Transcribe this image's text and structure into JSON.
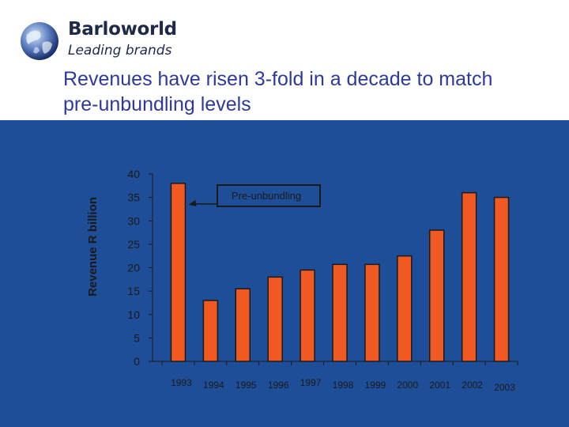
{
  "header": {
    "brand_name": "Barloworld",
    "brand_tagline": "Leading brands",
    "title_line1": "Revenues have risen 3-fold in a decade to match",
    "title_line2": "pre-unbundling levels"
  },
  "colors": {
    "panel": "#1f4e99",
    "bar": "#f05a22",
    "bar_stroke": "#1a1a1a",
    "text": "#1a1a1a"
  },
  "chart_data": {
    "type": "bar",
    "title": "",
    "xlabel": "",
    "ylabel": "Revenue R billion",
    "ylim": [
      0,
      40
    ],
    "yticks": [
      0,
      5,
      10,
      15,
      20,
      25,
      30,
      35,
      40
    ],
    "categories": [
      "1993",
      "1994",
      "1995",
      "1996",
      "1997",
      "1998",
      "1999",
      "2000",
      "2001",
      "2002",
      "2003"
    ],
    "values": [
      38,
      13,
      15.5,
      18,
      19.5,
      20.7,
      20.7,
      22.5,
      28,
      36,
      35
    ],
    "annotation": {
      "text": "Pre-unbundling",
      "points_to": "1993"
    }
  }
}
